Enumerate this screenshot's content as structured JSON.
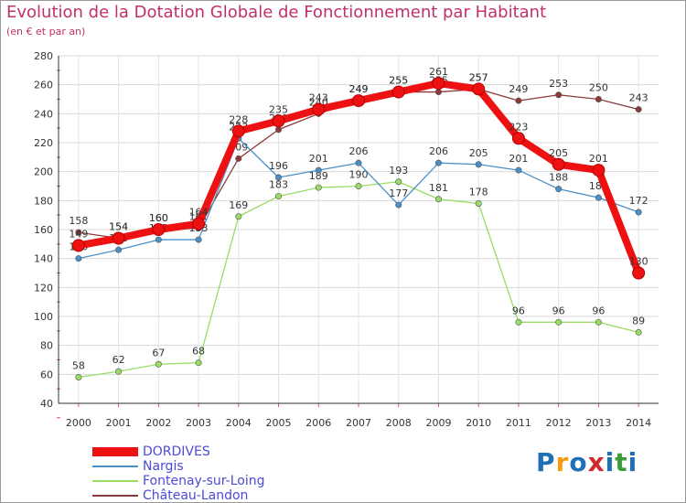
{
  "title": "Evolution de la Dotation Globale de Fonctionnement par Habitant",
  "subtitle": "(en € et par an)",
  "logo": {
    "text": "Proxiti",
    "colors": [
      "#1e6fb5",
      "#f39c12",
      "#1e6fb5",
      "#d0292e",
      "#1e6fb5",
      "#3a9d3a",
      "#1e6fb5"
    ]
  },
  "chart_data": {
    "type": "line",
    "title": "Evolution de la Dotation Globale de Fonctionnement par Habitant",
    "ylabel": "(en € et par an)",
    "x": [
      "2000",
      "2001",
      "2002",
      "2003",
      "2004",
      "2005",
      "2006",
      "2007",
      "2008",
      "2009",
      "2010",
      "2011",
      "2012",
      "2013",
      "2014"
    ],
    "ylim": [
      40,
      280
    ],
    "yticks": [
      "40",
      "60",
      "80",
      "100",
      "120",
      "140",
      "160",
      "180",
      "200",
      "220",
      "240",
      "260",
      "280"
    ],
    "grid": true,
    "legend_position": "bottom-left",
    "series": [
      {
        "name": "Château-Landon",
        "color": "#8b3a3a",
        "values": [
          158,
          154,
          160,
          161,
          209,
          229,
          240,
          249,
          255,
          255,
          257,
          249,
          253,
          250,
          243
        ],
        "labels": [
          "158",
          "154",
          "160",
          "161",
          "209",
          "229",
          "240",
          "249",
          "255",
          "255",
          "257",
          "249",
          "253",
          "250",
          "243"
        ]
      },
      {
        "name": "Fontenay-sur-Loing",
        "color": "#99dd66",
        "values": [
          58,
          62,
          67,
          68,
          169,
          183,
          189,
          190,
          193,
          181,
          178,
          96,
          96,
          96,
          89
        ],
        "labels": [
          "58",
          "62",
          "67",
          "68",
          "169",
          "183",
          "189",
          "190",
          "193",
          "181",
          "178",
          "96",
          "96",
          "96",
          "89"
        ]
      },
      {
        "name": "Nargis",
        "color": "#4a90c8",
        "values": [
          140,
          146,
          153,
          153,
          223,
          196,
          201,
          206,
          177,
          206,
          205,
          201,
          188,
          182,
          172
        ],
        "labels": [
          "140",
          "146",
          "153",
          "153",
          "223",
          "196",
          "201",
          "206",
          "177",
          "206",
          "205",
          "201",
          "188",
          "182",
          "172"
        ]
      },
      {
        "name": "DORDIVES",
        "color": "#ee1111",
        "values": [
          149,
          154,
          160,
          164,
          228,
          235,
          243,
          249,
          255,
          261,
          257,
          223,
          205,
          201,
          130
        ],
        "labels": [
          "149",
          "154",
          "160",
          "164",
          "228",
          "235",
          "243",
          "249",
          "255",
          "261",
          "257",
          "223",
          "205",
          "201",
          "130"
        ]
      }
    ]
  },
  "legend": [
    {
      "label": "DORDIVES",
      "color": "#ee1111"
    },
    {
      "label": "Nargis",
      "color": "#4a90c8"
    },
    {
      "label": "Fontenay-sur-Loing",
      "color": "#99dd66"
    },
    {
      "label": "Château-Landon",
      "color": "#8b3a3a"
    }
  ]
}
